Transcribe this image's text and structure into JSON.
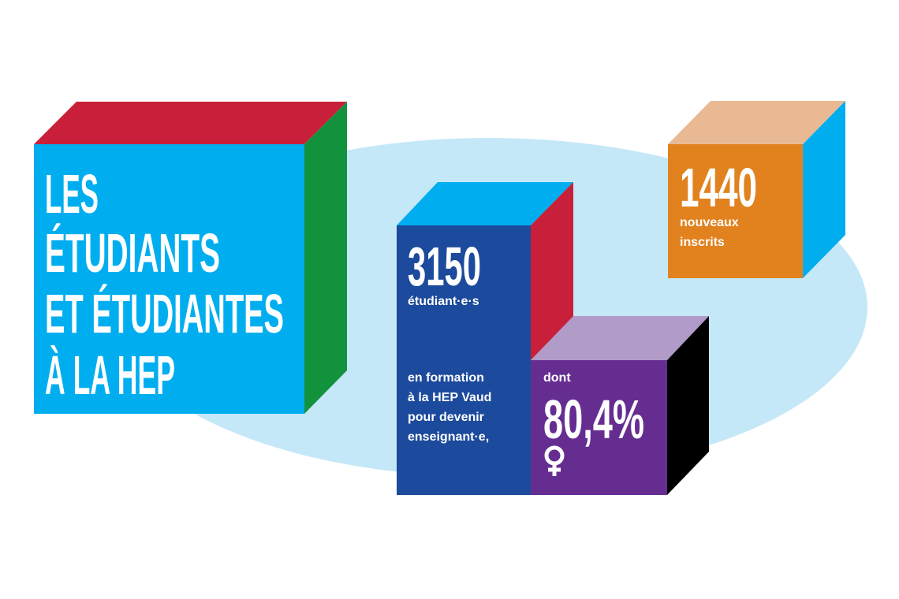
{
  "title": {
    "lines": [
      "LES",
      "ÉTUDIANTS",
      "ET ÉTUDIANTES",
      "À LA HEP"
    ]
  },
  "students": {
    "number": "3150",
    "label": "étudiant·e·s",
    "description": [
      "en formation",
      "à la HEP Vaud",
      "pour devenir",
      "enseignant·e,"
    ]
  },
  "women": {
    "prefix": "dont",
    "share": "80,4%"
  },
  "new_students": {
    "number": "1440",
    "label": [
      "nouveaux",
      "inscrits"
    ]
  }
}
